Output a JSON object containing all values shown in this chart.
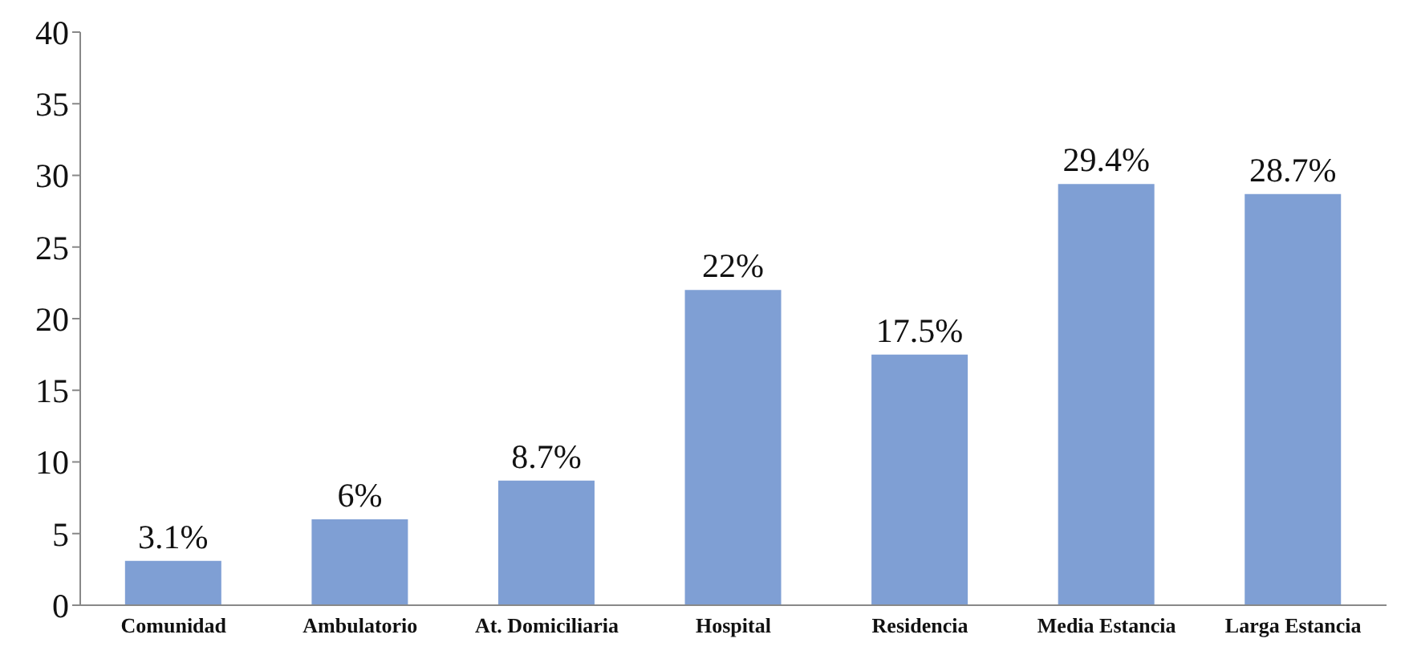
{
  "chart_data": {
    "type": "bar",
    "categories": [
      "Comunidad",
      "Ambulatorio",
      "At. Domiciliaria",
      "Hospital",
      "Residencia",
      "Media Estancia",
      "Larga Estancia"
    ],
    "values": [
      3.1,
      6,
      8.7,
      22,
      17.5,
      29.4,
      28.7
    ],
    "value_labels": [
      "3.1%",
      "6%",
      "8.7%",
      "22%",
      "17.5%",
      "29.4%",
      "28.7%"
    ],
    "color": "#7f9fd4",
    "ylim": [
      0,
      40
    ],
    "yticks": [
      0,
      5,
      10,
      15,
      20,
      25,
      30,
      35,
      40
    ],
    "grid": false,
    "legend": false
  }
}
